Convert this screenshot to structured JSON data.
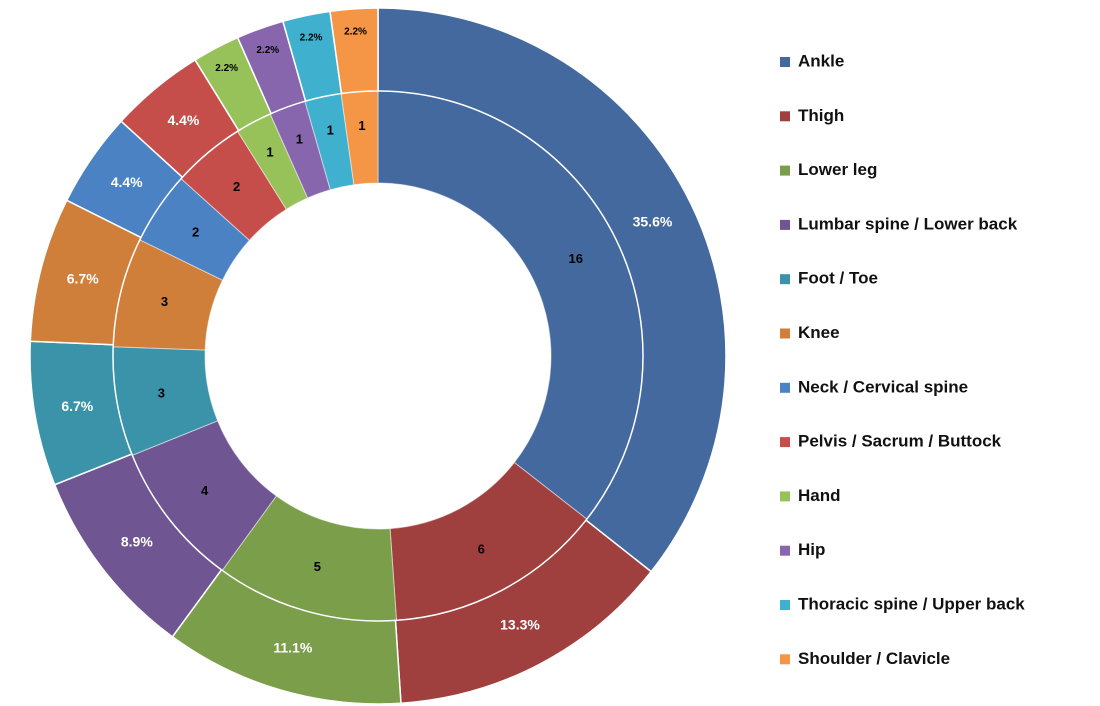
{
  "chart_data": {
    "type": "donut",
    "categories": [
      "Ankle",
      "Thigh",
      "Lower leg",
      "Lumbar spine / Lower back",
      "Foot / Toe",
      "Knee",
      "Neck / Cervical spine",
      "Pelvis / Sacrum / Buttock",
      "Hand",
      "Hip",
      "Thoracic spine / Upper back",
      "Shoulder / Clavicle"
    ],
    "colors": [
      "#44699e",
      "#a0403e",
      "#7b9e4b",
      "#6f5592",
      "#3a93a9",
      "#cf7f3a",
      "#4a82c3",
      "#c54e4b",
      "#97c25a",
      "#8866ae",
      "#3fb1ce",
      "#f59646"
    ],
    "series": [
      {
        "values": [
          16,
          6,
          5,
          4,
          3,
          3,
          2,
          2,
          1,
          1,
          1,
          1
        ]
      },
      {
        "values": [
          35.6,
          13.3,
          11.1,
          8.9,
          6.7,
          6.7,
          4.4,
          4.4,
          2.2,
          2.2,
          2.2,
          2.2
        ],
        "value_labels": [
          "35.6%",
          "13.3%",
          "11.1%",
          "8.9%",
          "6.7%",
          "6.7%",
          "4.4%",
          "4.4%",
          "2.2%",
          "2.2%",
          "2.2%",
          "2.2%"
        ]
      }
    ]
  }
}
